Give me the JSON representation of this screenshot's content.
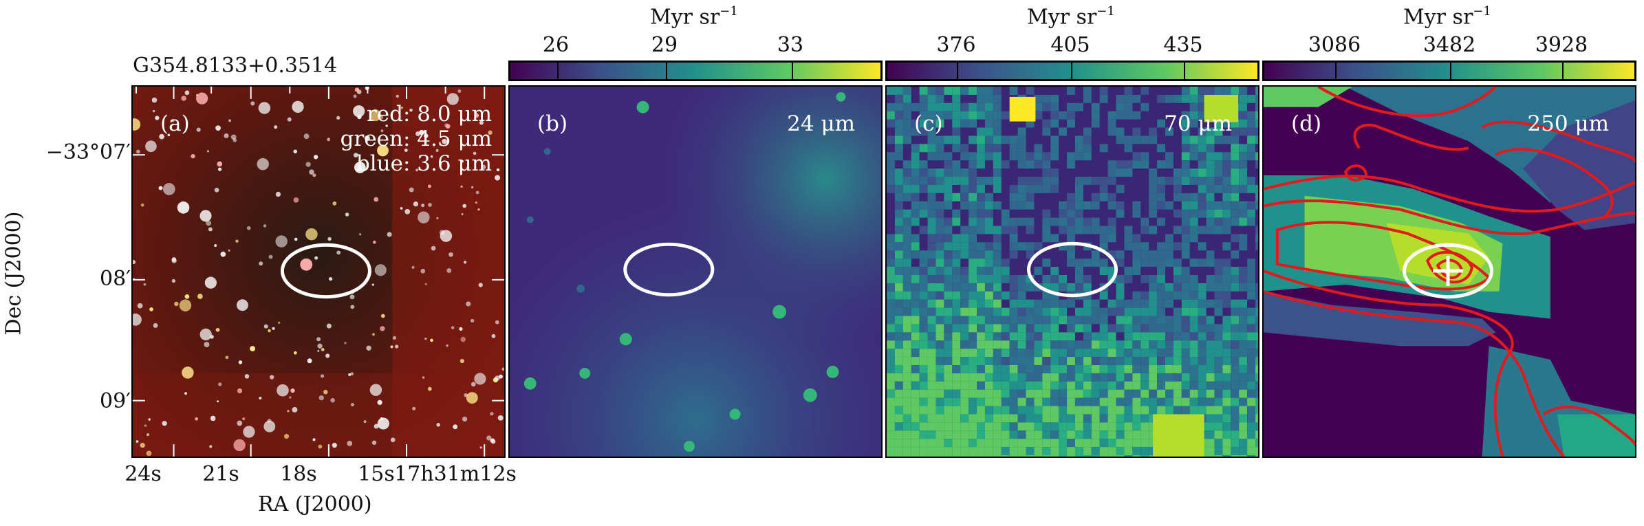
{
  "source_label": "G354.8133+0.3514",
  "axes": {
    "ylabel": "Dec (J2000)",
    "xlabel": "RA (J2000)",
    "yticks": [
      "−33°07′",
      "08′",
      "09′"
    ],
    "xticks": [
      "24s",
      "21s",
      "18s",
      "15s",
      "17h31m12s"
    ]
  },
  "colorbars": [
    {
      "title": "Myr sr",
      "exp": "−1",
      "ticks": [
        "26",
        "29",
        "33"
      ]
    },
    {
      "title": "Myr sr",
      "exp": "−1",
      "ticks": [
        "376",
        "405",
        "435"
      ]
    },
    {
      "title": "Myr sr",
      "exp": "−1",
      "ticks": [
        "3086",
        "3482",
        "3928"
      ]
    }
  ],
  "panels": [
    {
      "tag": "(a)",
      "lines": [
        "red: 8.0 μm",
        "green: 4.5 μm",
        "blue: 3.6 μm"
      ]
    },
    {
      "tag": "(b)",
      "band": "24 μm"
    },
    {
      "tag": "(c)",
      "band": "70 μm"
    },
    {
      "tag": "(d)",
      "band": "250 μm"
    }
  ],
  "colors": {
    "viridis_low": "#440154",
    "viridis_mid": "#21918c",
    "viridis_high": "#fde725",
    "contour": "#e31a1c",
    "ellipse": "#ffffff"
  }
}
